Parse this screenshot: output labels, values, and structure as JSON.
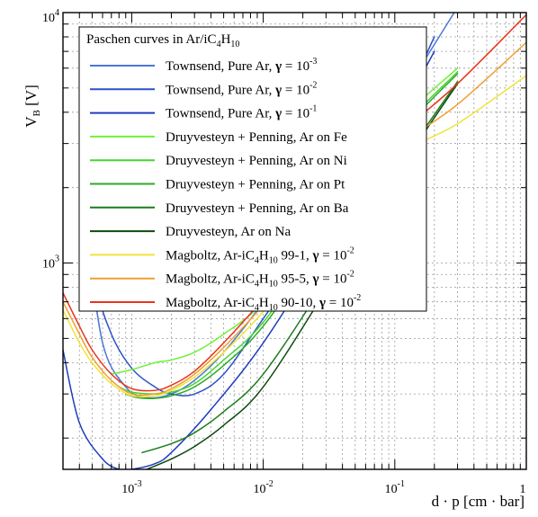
{
  "chart_data": {
    "type": "line",
    "xscale": "log",
    "yscale": "log",
    "xlim": [
      0.0003,
      1
    ],
    "ylim": [
      150,
      10000
    ],
    "grid": true,
    "xlabel_parts": [
      "d · p [cm · bar]"
    ],
    "ylabel_parts": {
      "main": "V",
      "sub": "B",
      "unit": " [V]"
    },
    "x_ticks": [
      {
        "value": 0.001,
        "base": "10",
        "exp": "-3"
      },
      {
        "value": 0.01,
        "base": "10",
        "exp": "-2"
      },
      {
        "value": 0.1,
        "base": "10",
        "exp": "-1"
      },
      {
        "value": 1,
        "base": "1",
        "exp": ""
      }
    ],
    "y_ticks": [
      {
        "value": 1000,
        "base": "10",
        "exp": "3"
      },
      {
        "value": 10000,
        "base": "10",
        "exp": "4"
      }
    ],
    "legend": {
      "title": {
        "a": "Paschen curves in Ar/iC",
        "sub1": "4",
        "b": "H",
        "sub2": "10"
      },
      "position": "top-left"
    },
    "series": [
      {
        "key": "t3",
        "color": "#4a78d8",
        "label": {
          "a": "Townsend, Pure Ar, ",
          "gamma": "γ",
          "b": " = 10",
          "sup": "-3"
        },
        "x": [
          0.00045,
          0.0006,
          0.0009,
          0.0013,
          0.002,
          0.003,
          0.005,
          0.01,
          0.03,
          0.1,
          0.3
        ],
        "y": [
          1400,
          480,
          320,
          290,
          300,
          340,
          440,
          700,
          1650,
          4200,
          10500
        ]
      },
      {
        "key": "t2",
        "color": "#2a52c8",
        "label": {
          "a": "Townsend, Pure Ar, ",
          "gamma": "γ",
          "b": " = 10",
          "sup": "-2"
        },
        "x": [
          0.0004,
          0.0005,
          0.0007,
          0.001,
          0.0015,
          0.002,
          0.003,
          0.005,
          0.01,
          0.03,
          0.1,
          0.2
        ],
        "y": [
          1800,
          900,
          520,
          380,
          320,
          300,
          300,
          360,
          600,
          1400,
          3800,
          8000
        ]
      },
      {
        "key": "t1",
        "color": "#1e3cc0",
        "label": {
          "a": "Townsend, Pure Ar, ",
          "gamma": "γ",
          "b": " = 10",
          "sup": "-1"
        },
        "x": [
          0.0003,
          0.0004,
          0.0006,
          0.0008,
          0.001,
          0.0015,
          0.002,
          0.004,
          0.01,
          0.03,
          0.1,
          0.2
        ],
        "y": [
          450,
          230,
          165,
          150,
          150,
          158,
          175,
          260,
          480,
          1200,
          3600,
          7000
        ]
      },
      {
        "key": "fe",
        "color": "#6ef23a",
        "label": {
          "a": "Druyvesteyn + Penning, Ar on Fe",
          "gamma": "",
          "b": "",
          "sup": ""
        },
        "x": [
          0.0007,
          0.001,
          0.0015,
          0.002,
          0.003,
          0.005,
          0.01,
          0.03,
          0.1,
          0.3
        ],
        "y": [
          360,
          375,
          400,
          410,
          440,
          520,
          700,
          1500,
          3500,
          6000
        ]
      },
      {
        "key": "ni",
        "color": "#44d630",
        "label": {
          "a": "Druyvesteyn + Penning, Ar on Ni",
          "gamma": "",
          "b": "",
          "sup": ""
        },
        "x": [
          0.0008,
          0.001,
          0.0015,
          0.002,
          0.003,
          0.005,
          0.01,
          0.03,
          0.1,
          0.3
        ],
        "y": [
          320,
          305,
          300,
          305,
          330,
          410,
          580,
          1300,
          3200,
          5800
        ]
      },
      {
        "key": "pt",
        "color": "#2eaa26",
        "label": {
          "a": "Druyvesteyn + Penning, Ar on Pt",
          "gamma": "",
          "b": "",
          "sup": ""
        },
        "x": [
          0.0009,
          0.0011,
          0.0015,
          0.002,
          0.003,
          0.005,
          0.01,
          0.03,
          0.1,
          0.3
        ],
        "y": [
          300,
          290,
          288,
          295,
          320,
          390,
          560,
          1250,
          3100,
          5700
        ]
      },
      {
        "key": "ba",
        "color": "#1c7d1a",
        "label": {
          "a": "Druyvesteyn + Penning, Ar on Ba",
          "gamma": "",
          "b": "",
          "sup": ""
        },
        "x": [
          0.0012,
          0.002,
          0.003,
          0.005,
          0.01,
          0.03,
          0.1,
          0.3
        ],
        "y": [
          175,
          190,
          210,
          255,
          360,
          850,
          2300,
          5300
        ]
      },
      {
        "key": "na",
        "color": "#0e4a10",
        "label": {
          "a": "Druyvesteyn, Ar on Na",
          "gamma": "",
          "b": "",
          "sup": ""
        },
        "x": [
          0.0013,
          0.002,
          0.003,
          0.005,
          0.01,
          0.03,
          0.1,
          0.3
        ],
        "y": [
          150,
          165,
          185,
          225,
          320,
          780,
          2200,
          5200
        ]
      },
      {
        "key": "m991",
        "color": "#f2e23a",
        "label": {
          "a": "Magboltz, Ar-iC",
          "sub": "4",
          "c": "H",
          "sub2": "10",
          "d": " 99-1, ",
          "gamma": "γ",
          "b": " = 10",
          "sup": "-2"
        },
        "x": [
          0.0003,
          0.0004,
          0.0005,
          0.0007,
          0.001,
          0.0015,
          0.002,
          0.003,
          0.005,
          0.01,
          0.03,
          0.1,
          0.3,
          1
        ],
        "y": [
          650,
          480,
          400,
          330,
          295,
          295,
          310,
          350,
          440,
          640,
          1300,
          2600,
          3600,
          5600
        ]
      },
      {
        "key": "m955",
        "color": "#f0a030",
        "label": {
          "a": "Magboltz, Ar-iC",
          "sub": "4",
          "c": "H",
          "sub2": "10",
          "d": " 95-5, ",
          "gamma": "γ",
          "b": " = 10",
          "sup": "-2"
        },
        "x": [
          0.0003,
          0.0004,
          0.0005,
          0.0007,
          0.001,
          0.0015,
          0.002,
          0.003,
          0.005,
          0.01,
          0.03,
          0.1,
          0.3,
          1
        ],
        "y": [
          700,
          520,
          420,
          340,
          300,
          300,
          315,
          360,
          460,
          680,
          1380,
          2800,
          4300,
          7600
        ]
      },
      {
        "key": "m9010",
        "color": "#e8341c",
        "label": {
          "a": "Magboltz, Ar-iC",
          "sub": "4",
          "c": "H",
          "sub2": "10",
          "d": " 90-10, ",
          "gamma": "γ",
          "b": " = 10",
          "sup": "-2"
        },
        "x": [
          0.0003,
          0.0004,
          0.0005,
          0.0007,
          0.001,
          0.0015,
          0.002,
          0.003,
          0.005,
          0.01,
          0.03,
          0.1,
          0.3,
          1
        ],
        "y": [
          760,
          560,
          450,
          360,
          315,
          310,
          325,
          370,
          480,
          720,
          1480,
          3100,
          5200,
          9800
        ]
      }
    ]
  }
}
